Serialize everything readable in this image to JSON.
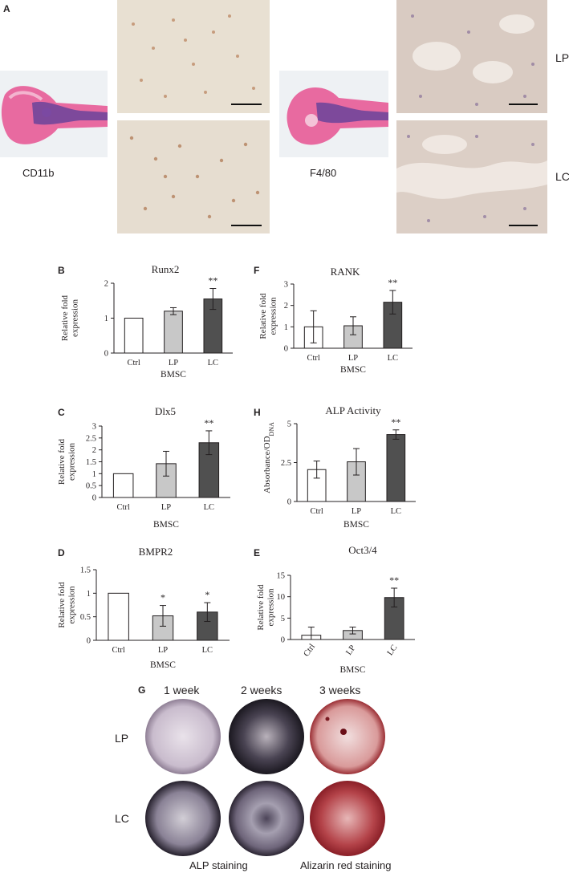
{
  "panelA": {
    "letter": "A",
    "left_label": "CD11b",
    "right_label": "F4/80",
    "row_top_label": "LP",
    "row_bottom_label": "LC"
  },
  "panelG": {
    "letter": "G",
    "columns": [
      "1 week",
      "2 weeks",
      "3 weeks"
    ],
    "rows": [
      "LP",
      "LC"
    ],
    "bottom_left_caption": "ALP staining",
    "bottom_right_caption": "Alizarin red staining"
  },
  "chart_data": [
    {
      "id": "B",
      "type": "bar",
      "title": "Runx2",
      "categories": [
        "Ctrl",
        "LP",
        "LC"
      ],
      "values": [
        1.0,
        1.2,
        1.55
      ],
      "errors": [
        0.0,
        0.1,
        0.3
      ],
      "significance": [
        "",
        "",
        "**"
      ],
      "ylabel": [
        "Relative fold",
        "expression"
      ],
      "xlabel": "BMSC",
      "ylim": [
        0,
        2
      ],
      "yticks": [
        0,
        1,
        2
      ],
      "colors": [
        "#ffffff",
        "#c8c8c8",
        "#505050"
      ]
    },
    {
      "id": "F",
      "type": "bar",
      "title": "RANK",
      "categories": [
        "Ctrl",
        "LP",
        "LC"
      ],
      "values": [
        1.0,
        1.05,
        2.15
      ],
      "errors": [
        0.75,
        0.42,
        0.55
      ],
      "significance": [
        "",
        "",
        "**"
      ],
      "ylabel": [
        "Relative fold",
        "expression"
      ],
      "xlabel": "BMSC",
      "ylim": [
        0,
        3
      ],
      "yticks": [
        0,
        1,
        2,
        3
      ],
      "colors": [
        "#ffffff",
        "#c8c8c8",
        "#505050"
      ]
    },
    {
      "id": "C",
      "type": "bar",
      "title": "Dlx5",
      "categories": [
        "Ctrl",
        "LP",
        "LC"
      ],
      "values": [
        1.0,
        1.42,
        2.3
      ],
      "errors": [
        0.0,
        0.52,
        0.5
      ],
      "significance": [
        "",
        "",
        "**"
      ],
      "ylabel": [
        "Relative fold",
        "expression"
      ],
      "xlabel": "BMSC",
      "ylim": [
        0,
        3
      ],
      "yticks": [
        0,
        0.5,
        1,
        1.5,
        2,
        2.5,
        3
      ],
      "yticklabels": [
        "0",
        "0.5",
        "1",
        "1.5",
        "2",
        "2.5",
        "3"
      ],
      "colors": [
        "#ffffff",
        "#c8c8c8",
        "#505050"
      ]
    },
    {
      "id": "H",
      "type": "bar",
      "title": "ALP Activity",
      "categories": [
        "Ctrl",
        "LP",
        "LC"
      ],
      "values": [
        2.05,
        2.55,
        4.3
      ],
      "errors": [
        0.55,
        0.85,
        0.3
      ],
      "significance": [
        "",
        "",
        "**"
      ],
      "ylabel": [
        "Absorbance/OD",
        "DNA"
      ],
      "xlabel": "BMSC",
      "ylim": [
        0,
        5
      ],
      "yticks": [
        0,
        2.5,
        5
      ],
      "colors": [
        "#ffffff",
        "#c8c8c8",
        "#505050"
      ]
    },
    {
      "id": "D",
      "type": "bar",
      "title": "BMPR2",
      "categories": [
        "Ctrl",
        "LP",
        "LC"
      ],
      "values": [
        1.0,
        0.52,
        0.6
      ],
      "errors": [
        0.0,
        0.22,
        0.2
      ],
      "significance": [
        "",
        "*",
        "*"
      ],
      "ylabel": [
        "Relative fold",
        "expression"
      ],
      "xlabel": "BMSC",
      "ylim": [
        0,
        1.5
      ],
      "yticks": [
        0,
        0.5,
        1,
        1.5
      ],
      "yticklabels": [
        "0",
        "0.5",
        "1",
        "1.5"
      ],
      "colors": [
        "#ffffff",
        "#c8c8c8",
        "#505050"
      ]
    },
    {
      "id": "E",
      "type": "bar",
      "title": "Oct3/4",
      "categories": [
        "Ctrl",
        "LP",
        "LC"
      ],
      "values": [
        1.0,
        2.1,
        9.8
      ],
      "errors": [
        1.9,
        0.8,
        2.2
      ],
      "significance": [
        "",
        "",
        "**"
      ],
      "ylabel": [
        "Relative fold",
        "expression"
      ],
      "xlabel": "BMSC",
      "ylim": [
        0,
        15
      ],
      "yticks": [
        0,
        5,
        10,
        15
      ],
      "colors": [
        "#ffffff",
        "#c8c8c8",
        "#505050"
      ]
    }
  ]
}
